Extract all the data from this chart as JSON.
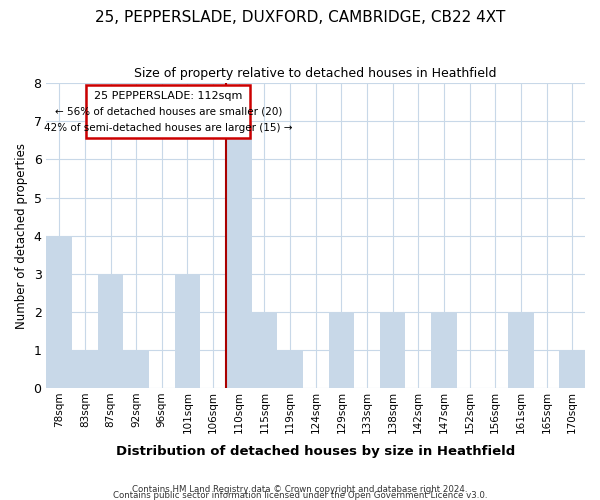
{
  "title": "25, PEPPERSLADE, DUXFORD, CAMBRIDGE, CB22 4XT",
  "subtitle": "Size of property relative to detached houses in Heathfield",
  "xlabel": "Distribution of detached houses by size in Heathfield",
  "ylabel": "Number of detached properties",
  "bar_labels": [
    "78sqm",
    "83sqm",
    "87sqm",
    "92sqm",
    "96sqm",
    "101sqm",
    "106sqm",
    "110sqm",
    "115sqm",
    "119sqm",
    "124sqm",
    "129sqm",
    "133sqm",
    "138sqm",
    "142sqm",
    "147sqm",
    "152sqm",
    "156sqm",
    "161sqm",
    "165sqm",
    "170sqm"
  ],
  "bar_values": [
    4,
    1,
    3,
    1,
    0,
    3,
    0,
    7,
    2,
    1,
    0,
    2,
    0,
    2,
    0,
    2,
    0,
    0,
    2,
    0,
    1
  ],
  "highlight_index": 7,
  "bar_color": "#c8d8e8",
  "highlight_line_color": "#aa0000",
  "ylim": [
    0,
    8
  ],
  "yticks": [
    0,
    1,
    2,
    3,
    4,
    5,
    6,
    7,
    8
  ],
  "annotation_title": "25 PEPPERSLADE: 112sqm",
  "annotation_line1": "← 56% of detached houses are smaller (20)",
  "annotation_line2": "42% of semi-detached houses are larger (15) →",
  "annotation_box_color": "#ffffff",
  "annotation_box_edge": "#cc0000",
  "footer1": "Contains HM Land Registry data © Crown copyright and database right 2024.",
  "footer2": "Contains public sector information licensed under the Open Government Licence v3.0.",
  "bg_color": "#ffffff",
  "grid_color": "#c8d8e8"
}
